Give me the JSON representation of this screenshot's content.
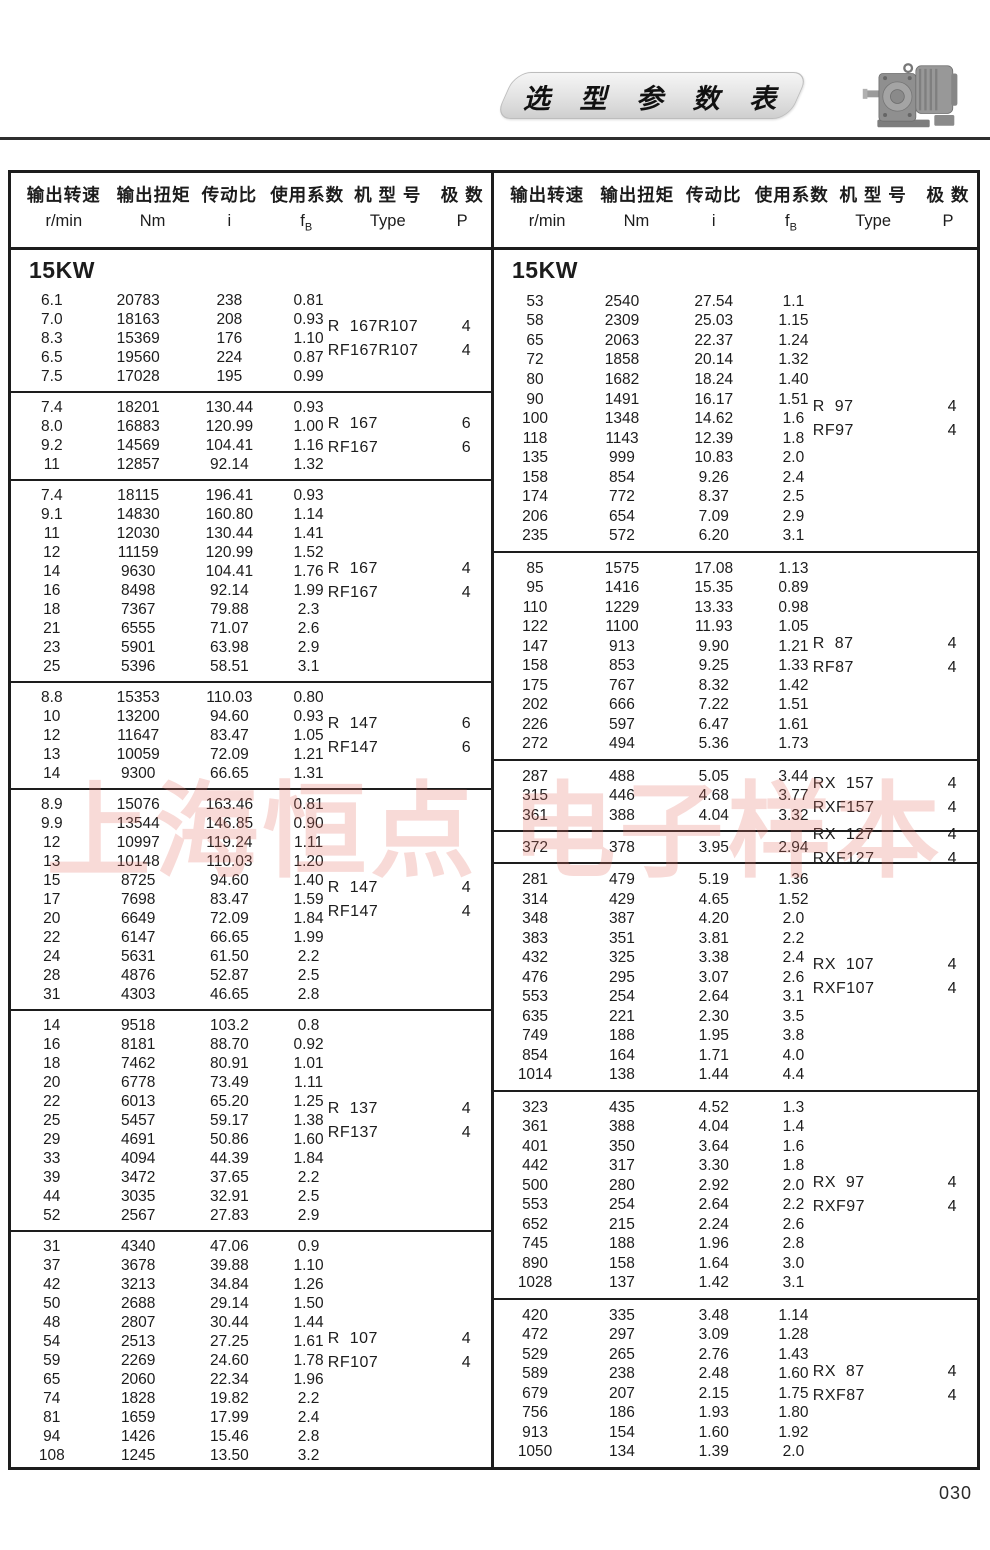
{
  "page": {
    "banner_title": "选 型 参 数 表",
    "page_number": "030",
    "watermark": "上海恒点 电子样本"
  },
  "columns": {
    "speed_cn": "输出转速",
    "speed_unit": "r/min",
    "torque_cn": "输出扭矩",
    "torque_unit": "Nm",
    "ratio_cn": "传动比",
    "ratio_unit": "i",
    "factor_cn": "使用系数",
    "factor_unit_main": "f",
    "factor_unit_sub": "B",
    "type_cn": "机 型 号",
    "type_unit": "Type",
    "poles_cn": "极 数",
    "poles_unit": "P"
  },
  "table": {
    "left": {
      "power": "15KW",
      "blocks": [
        {
          "rows": [
            [
              "6.1",
              "20783",
              "238",
              "0.81"
            ],
            [
              "7.0",
              "18163",
              "208",
              "0.93"
            ],
            [
              "8.3",
              "15369",
              "176",
              "1.10"
            ],
            [
              "6.5",
              "19560",
              "224",
              "0.87"
            ],
            [
              "7.5",
              "17028",
              "195",
              "0.99"
            ]
          ],
          "types": [
            {
              "label": "R  167R107",
              "poles": "4"
            },
            {
              "label": "RF167R107",
              "poles": "4"
            }
          ]
        },
        {
          "rows": [
            [
              "7.4",
              "18201",
              "130.44",
              "0.93"
            ],
            [
              "8.0",
              "16883",
              "120.99",
              "1.00"
            ],
            [
              "9.2",
              "14569",
              "104.41",
              "1.16"
            ],
            [
              "11",
              "12857",
              "92.14",
              "1.32"
            ]
          ],
          "types": [
            {
              "label": "R  167",
              "poles": "6"
            },
            {
              "label": "RF167",
              "poles": "6"
            }
          ]
        },
        {
          "rows": [
            [
              "7.4",
              "18115",
              "196.41",
              "0.93"
            ],
            [
              "9.1",
              "14830",
              "160.80",
              "1.14"
            ],
            [
              "11",
              "12030",
              "130.44",
              "1.41"
            ],
            [
              "12",
              "11159",
              "120.99",
              "1.52"
            ],
            [
              "14",
              "9630",
              "104.41",
              "1.76"
            ],
            [
              "16",
              "8498",
              "92.14",
              "1.99"
            ],
            [
              "18",
              "7367",
              "79.88",
              "2.3"
            ],
            [
              "21",
              "6555",
              "71.07",
              "2.6"
            ],
            [
              "23",
              "5901",
              "63.98",
              "2.9"
            ],
            [
              "25",
              "5396",
              "58.51",
              "3.1"
            ]
          ],
          "types": [
            {
              "label": "R  167",
              "poles": "4"
            },
            {
              "label": "RF167",
              "poles": "4"
            }
          ]
        },
        {
          "rows": [
            [
              "8.8",
              "15353",
              "110.03",
              "0.80"
            ],
            [
              "10",
              "13200",
              "94.60",
              "0.93"
            ],
            [
              "12",
              "11647",
              "83.47",
              "1.05"
            ],
            [
              "13",
              "10059",
              "72.09",
              "1.21"
            ],
            [
              "14",
              "9300",
              "66.65",
              "1.31"
            ]
          ],
          "types": [
            {
              "label": "R  147",
              "poles": "6"
            },
            {
              "label": "RF147",
              "poles": "6"
            }
          ]
        },
        {
          "rows": [
            [
              "8.9",
              "15076",
              "163.46",
              "0.81"
            ],
            [
              "9.9",
              "13544",
              "146.85",
              "0.90"
            ],
            [
              "12",
              "10997",
              "119.24",
              "1.11"
            ],
            [
              "13",
              "10148",
              "110.03",
              "1.20"
            ],
            [
              "15",
              "8725",
              "94.60",
              "1.40"
            ],
            [
              "17",
              "7698",
              "83.47",
              "1.59"
            ],
            [
              "20",
              "6649",
              "72.09",
              "1.84"
            ],
            [
              "22",
              "6147",
              "66.65",
              "1.99"
            ],
            [
              "24",
              "5631",
              "61.50",
              "2.2"
            ],
            [
              "28",
              "4876",
              "52.87",
              "2.5"
            ],
            [
              "31",
              "4303",
              "46.65",
              "2.8"
            ]
          ],
          "types": [
            {
              "label": "R  147",
              "poles": "4"
            },
            {
              "label": "RF147",
              "poles": "4"
            }
          ]
        },
        {
          "rows": [
            [
              "14",
              "9518",
              "103.2",
              "0.8"
            ],
            [
              "16",
              "8181",
              "88.70",
              "0.92"
            ],
            [
              "18",
              "7462",
              "80.91",
              "1.01"
            ],
            [
              "20",
              "6778",
              "73.49",
              "1.11"
            ],
            [
              "22",
              "6013",
              "65.20",
              "1.25"
            ],
            [
              "25",
              "5457",
              "59.17",
              "1.38"
            ],
            [
              "29",
              "4691",
              "50.86",
              "1.60"
            ],
            [
              "33",
              "4094",
              "44.39",
              "1.84"
            ],
            [
              "39",
              "3472",
              "37.65",
              "2.2"
            ],
            [
              "44",
              "3035",
              "32.91",
              "2.5"
            ],
            [
              "52",
              "2567",
              "27.83",
              "2.9"
            ]
          ],
          "types": [
            {
              "label": "R  137",
              "poles": "4"
            },
            {
              "label": "RF137",
              "poles": "4"
            }
          ]
        },
        {
          "rows": [
            [
              "31",
              "4340",
              "47.06",
              "0.9"
            ],
            [
              "37",
              "3678",
              "39.88",
              "1.10"
            ],
            [
              "42",
              "3213",
              "34.84",
              "1.26"
            ],
            [
              "50",
              "2688",
              "29.14",
              "1.50"
            ],
            [
              "48",
              "2807",
              "30.44",
              "1.44"
            ],
            [
              "54",
              "2513",
              "27.25",
              "1.61"
            ],
            [
              "59",
              "2269",
              "24.60",
              "1.78"
            ],
            [
              "65",
              "2060",
              "22.34",
              "1.96"
            ],
            [
              "74",
              "1828",
              "19.82",
              "2.2"
            ],
            [
              "81",
              "1659",
              "17.99",
              "2.4"
            ],
            [
              "94",
              "1426",
              "15.46",
              "2.8"
            ],
            [
              "108",
              "1245",
              "13.50",
              "3.2"
            ]
          ],
          "types": [
            {
              "label": "R  107",
              "poles": "4"
            },
            {
              "label": "RF107",
              "poles": "4"
            }
          ]
        }
      ]
    },
    "right": {
      "power": "15KW",
      "blocks": [
        {
          "rows": [
            [
              "53",
              "2540",
              "27.54",
              "1.1"
            ],
            [
              "58",
              "2309",
              "25.03",
              "1.15"
            ],
            [
              "65",
              "2063",
              "22.37",
              "1.24"
            ],
            [
              "72",
              "1858",
              "20.14",
              "1.32"
            ],
            [
              "80",
              "1682",
              "18.24",
              "1.40"
            ],
            [
              "90",
              "1491",
              "16.17",
              "1.51"
            ],
            [
              "100",
              "1348",
              "14.62",
              "1.6"
            ],
            [
              "118",
              "1143",
              "12.39",
              "1.8"
            ],
            [
              "135",
              "999",
              "10.83",
              "2.0"
            ],
            [
              "158",
              "854",
              "9.26",
              "2.4"
            ],
            [
              "174",
              "772",
              "8.37",
              "2.5"
            ],
            [
              "206",
              "654",
              "7.09",
              "2.9"
            ],
            [
              "235",
              "572",
              "6.20",
              "3.1"
            ]
          ],
          "types": [
            {
              "label": "R  97",
              "poles": "4"
            },
            {
              "label": "RF97",
              "poles": "4"
            }
          ]
        },
        {
          "rows": [
            [
              "85",
              "1575",
              "17.08",
              "1.13"
            ],
            [
              "95",
              "1416",
              "15.35",
              "0.89"
            ],
            [
              "110",
              "1229",
              "13.33",
              "0.98"
            ],
            [
              "122",
              "1100",
              "11.93",
              "1.05"
            ],
            [
              "147",
              "913",
              "9.90",
              "1.21"
            ],
            [
              "158",
              "853",
              "9.25",
              "1.33"
            ],
            [
              "175",
              "767",
              "8.32",
              "1.42"
            ],
            [
              "202",
              "666",
              "7.22",
              "1.51"
            ],
            [
              "226",
              "597",
              "6.47",
              "1.61"
            ],
            [
              "272",
              "494",
              "5.36",
              "1.73"
            ]
          ],
          "types": [
            {
              "label": "R  87",
              "poles": "4"
            },
            {
              "label": "RF87",
              "poles": "4"
            }
          ]
        },
        {
          "rows": [
            [
              "287",
              "488",
              "5.05",
              "3.44"
            ],
            [
              "315",
              "446",
              "4.68",
              "3.77"
            ],
            [
              "361",
              "388",
              "4.04",
              "3.32"
            ]
          ],
          "types": [
            {
              "label": "RX  157",
              "poles": "4"
            },
            {
              "label": "RXF157",
              "poles": "4"
            }
          ]
        },
        {
          "rows": [
            [
              "372",
              "378",
              "3.95",
              "2.94"
            ]
          ],
          "types": [
            {
              "label": "RX  127",
              "poles": "4"
            },
            {
              "label": "RXF127",
              "poles": "4"
            }
          ]
        },
        {
          "rows": [
            [
              "281",
              "479",
              "5.19",
              "1.36"
            ],
            [
              "314",
              "429",
              "4.65",
              "1.52"
            ],
            [
              "348",
              "387",
              "4.20",
              "2.0"
            ],
            [
              "383",
              "351",
              "3.81",
              "2.2"
            ],
            [
              "432",
              "325",
              "3.38",
              "2.4"
            ],
            [
              "476",
              "295",
              "3.07",
              "2.6"
            ],
            [
              "553",
              "254",
              "2.64",
              "3.1"
            ],
            [
              "635",
              "221",
              "2.30",
              "3.5"
            ],
            [
              "749",
              "188",
              "1.95",
              "3.8"
            ],
            [
              "854",
              "164",
              "1.71",
              "4.0"
            ],
            [
              "1014",
              "138",
              "1.44",
              "4.4"
            ]
          ],
          "types": [
            {
              "label": "RX  107",
              "poles": "4"
            },
            {
              "label": "RXF107",
              "poles": "4"
            }
          ]
        },
        {
          "rows": [
            [
              "323",
              "435",
              "4.52",
              "1.3"
            ],
            [
              "361",
              "388",
              "4.04",
              "1.4"
            ],
            [
              "401",
              "350",
              "3.64",
              "1.6"
            ],
            [
              "442",
              "317",
              "3.30",
              "1.8"
            ],
            [
              "500",
              "280",
              "2.92",
              "2.0"
            ],
            [
              "553",
              "254",
              "2.64",
              "2.2"
            ],
            [
              "652",
              "215",
              "2.24",
              "2.6"
            ],
            [
              "745",
              "188",
              "1.96",
              "2.8"
            ],
            [
              "890",
              "158",
              "1.64",
              "3.0"
            ],
            [
              "1028",
              "137",
              "1.42",
              "3.1"
            ]
          ],
          "types": [
            {
              "label": "RX  97",
              "poles": "4"
            },
            {
              "label": "RXF97",
              "poles": "4"
            }
          ]
        },
        {
          "rows": [
            [
              "420",
              "335",
              "3.48",
              "1.14"
            ],
            [
              "472",
              "297",
              "3.09",
              "1.28"
            ],
            [
              "529",
              "265",
              "2.76",
              "1.43"
            ],
            [
              "589",
              "238",
              "2.48",
              "1.60"
            ],
            [
              "679",
              "207",
              "2.15",
              "1.75"
            ],
            [
              "756",
              "186",
              "1.93",
              "1.80"
            ],
            [
              "913",
              "154",
              "1.60",
              "1.92"
            ],
            [
              "1050",
              "134",
              "1.39",
              "2.0"
            ]
          ],
          "types": [
            {
              "label": "RX  87",
              "poles": "4"
            },
            {
              "label": "RXF87",
              "poles": "4"
            }
          ]
        }
      ]
    }
  }
}
